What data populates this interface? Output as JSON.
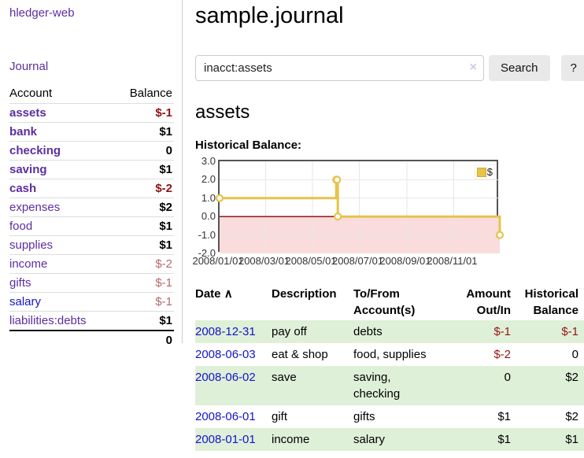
{
  "colors": {
    "link_purple": "#5c2ea0",
    "link_blue": "#1414cc",
    "negative_strong": "#8f1416",
    "negative_soft": "#b26b6b",
    "row_green": "#dff0d8",
    "chart_line_gold": "#e8c34a",
    "chart_negative_region": "#fbdcdc",
    "chart_zero_line": "#8b0000",
    "chart_border": "#545454",
    "chart_grid": "#e6e6e6"
  },
  "sidebar": {
    "brand": "hledger-web",
    "nav": {
      "journal": "Journal"
    },
    "accounts_table": {
      "headers": [
        "Account",
        "Balance"
      ],
      "rows": [
        {
          "name": "assets",
          "depth": 1,
          "balance": "$-1",
          "bold": true,
          "negative": "strong"
        },
        {
          "name": "bank",
          "depth": 2,
          "balance": "$1",
          "bold": true,
          "negative": null
        },
        {
          "name": "checking",
          "depth": 3,
          "balance": "0",
          "bold": true,
          "negative": null
        },
        {
          "name": "saving",
          "depth": 3,
          "balance": "$1",
          "bold": true,
          "negative": null
        },
        {
          "name": "cash",
          "depth": 2,
          "balance": "$-2",
          "bold": true,
          "negative": "strong"
        },
        {
          "name": "expenses",
          "depth": 1,
          "balance": "$2",
          "bold": false,
          "negative": null
        },
        {
          "name": "food",
          "depth": 2,
          "balance": "$1",
          "bold": false,
          "negative": null
        },
        {
          "name": "supplies",
          "depth": 2,
          "balance": "$1",
          "bold": false,
          "negative": null
        },
        {
          "name": "income",
          "depth": 1,
          "balance": "$-2",
          "bold": false,
          "negative": "soft"
        },
        {
          "name": "gifts",
          "depth": 2,
          "balance": "$-1",
          "bold": false,
          "negative": "soft"
        },
        {
          "name": "salary",
          "depth": 2,
          "balance": "$-1",
          "bold": false,
          "negative": "soft",
          "unvisited": true
        },
        {
          "name": "liabilities:debts",
          "depth": 1,
          "balance": "$1",
          "bold": false,
          "negative": null
        }
      ],
      "total": "0"
    }
  },
  "header": {
    "title": "sample.journal"
  },
  "search": {
    "value": "inacct:assets",
    "clear_icon": "×",
    "button_label": "Search",
    "help_label": "?"
  },
  "main": {
    "account_heading": "assets",
    "chart_label": "Historical Balance:"
  },
  "chart_data": {
    "type": "line",
    "title": "Historical Balance",
    "step": "horizontal-then-vertical",
    "series": [
      {
        "name": "$",
        "points": [
          [
            "2008-01-01",
            1
          ],
          [
            "2008-06-01",
            2
          ],
          [
            "2008-06-02",
            2
          ],
          [
            "2008-06-03",
            0
          ],
          [
            "2008-12-31",
            -1
          ]
        ]
      }
    ],
    "x_range": [
      "2008-01-01",
      "2008-12-31"
    ],
    "ylim": [
      -2,
      3
    ],
    "y_ticks": [
      3.0,
      2.0,
      1.0,
      0.0,
      -1.0,
      -2.0
    ],
    "x_ticks": [
      "2008-01-01",
      "2008-03-01",
      "2008-05-01",
      "2008-07-01",
      "2008-09-01",
      "2008-11-01"
    ],
    "x_tick_labels": [
      "2008/01/01",
      "2008/03/01",
      "2008/05/01",
      "2008/07/01",
      "2008/09/01",
      "2008/11/01"
    ],
    "legend": [
      "$"
    ],
    "legend_position": "top-right",
    "grid": true,
    "negative_region_shaded": true
  },
  "transactions": {
    "headers": {
      "date": "Date",
      "sort_indicator": "∧",
      "description": "Description",
      "account_line1": "To/From",
      "account_line2": "Account(s)",
      "amount_line1": "Amount",
      "amount_line2": "Out/In",
      "balance_line1": "Historical",
      "balance_line2": "Balance"
    },
    "rows": [
      {
        "date": "2008-12-31",
        "description": "pay off",
        "accounts": "debts",
        "amount": "$-1",
        "balance": "$-1",
        "amount_negative": true,
        "balance_negative": true,
        "highlight": true
      },
      {
        "date": "2008-06-03",
        "description": "eat & shop",
        "accounts": "food, supplies",
        "amount": "$-2",
        "balance": "0",
        "amount_negative": true,
        "balance_negative": false,
        "highlight": false
      },
      {
        "date": "2008-06-02",
        "description": "save",
        "accounts": "saving, checking",
        "amount": "0",
        "balance": "$2",
        "amount_negative": false,
        "balance_negative": false,
        "highlight": true
      },
      {
        "date": "2008-06-01",
        "description": "gift",
        "accounts": "gifts",
        "amount": "$1",
        "balance": "$2",
        "amount_negative": false,
        "balance_negative": false,
        "highlight": false
      },
      {
        "date": "2008-01-01",
        "description": "income",
        "accounts": "salary",
        "amount": "$1",
        "balance": "$1",
        "amount_negative": false,
        "balance_negative": false,
        "highlight": true
      }
    ]
  }
}
